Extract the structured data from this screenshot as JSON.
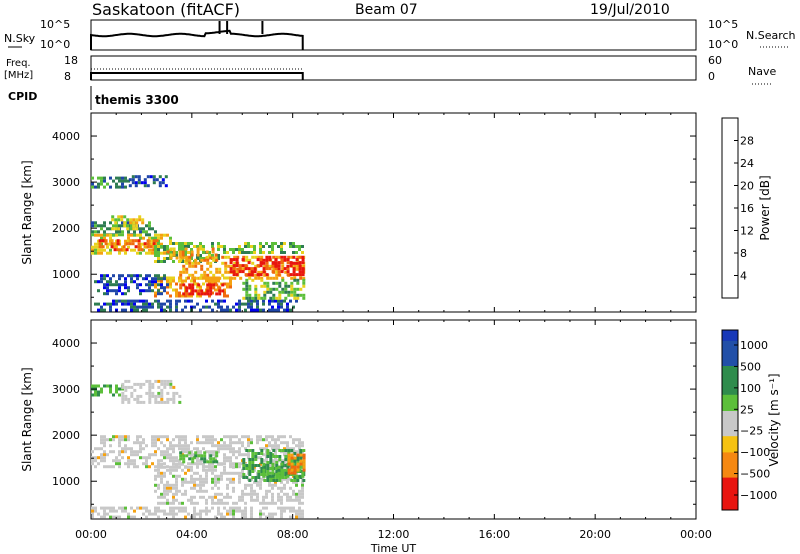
{
  "header": {
    "station": "Saskatoon (fitACF)",
    "beam": "Beam 07",
    "date": "19/Jul/2010"
  },
  "colors": {
    "scatter_power": [
      "#0000ee",
      "#1f46a8",
      "#2e7c52",
      "#5cbf3a",
      "#e8d21e",
      "#f5a211",
      "#f06a0e",
      "#e8150f"
    ],
    "scatter_velocity_pos": [
      "#1d3fa7",
      "#2f6db7",
      "#2f8c4c",
      "#5cbf3a"
    ],
    "ground_scatter": "#c8c8c8"
  },
  "chart_data": [
    {
      "type": "line",
      "panel": "noise-and-search",
      "ylabel_left": "N.Sky",
      "ylabel_right": "N.Search",
      "ytick_labels_left": [
        "10^5",
        "10^0"
      ],
      "ytick_labels_right": [
        "10^5",
        "10^0"
      ]
    },
    {
      "type": "line",
      "panel": "frequency-and-nave",
      "ylabel_left": "Freq. [MHz]",
      "ylabel_right": "Nave",
      "ytick_labels_left": [
        "18",
        "8"
      ],
      "ytick_labels_right": [
        "60",
        "0"
      ],
      "left_ylim": [
        8,
        18
      ],
      "right_ylim": [
        0,
        60
      ]
    },
    {
      "type": "table",
      "panel": "cpid",
      "label": "CPID",
      "value": "themis 3300"
    },
    {
      "type": "heatmap",
      "panel": "power",
      "xlabel": "",
      "ylabel": "Slant Range [km]",
      "xlim_hours": [
        0,
        24
      ],
      "ylim": [
        180,
        4500
      ],
      "yticks": [
        "1000",
        "2000",
        "3000",
        "4000"
      ],
      "data_end_hour": 8.4,
      "colorbar": {
        "label": "Power [dB]",
        "range": [
          0,
          32
        ],
        "ticks": [
          "4",
          "8",
          "12",
          "16",
          "20",
          "24",
          "28"
        ]
      },
      "regions": [
        {
          "t0": 0.0,
          "t1": 1.5,
          "r0": 2880,
          "r1": 3120,
          "level": 2
        },
        {
          "t0": 1.5,
          "t1": 3.0,
          "r0": 2950,
          "r1": 3150,
          "level": 1
        },
        {
          "t0": 0.0,
          "t1": 2.5,
          "r0": 1880,
          "r1": 2150,
          "level": 2
        },
        {
          "t0": 0.8,
          "t1": 2.0,
          "r0": 2000,
          "r1": 2280,
          "level": 4
        },
        {
          "t0": 0.0,
          "t1": 3.2,
          "r0": 1480,
          "r1": 1880,
          "level": 4
        },
        {
          "t0": 0.3,
          "t1": 2.6,
          "r0": 1560,
          "r1": 1760,
          "level": 6
        },
        {
          "t0": 2.5,
          "t1": 5.0,
          "r0": 1300,
          "r1": 1700,
          "level": 3
        },
        {
          "t0": 3.0,
          "t1": 5.0,
          "r0": 1380,
          "r1": 1580,
          "level": 5
        },
        {
          "t0": 5.0,
          "t1": 8.4,
          "r0": 1450,
          "r1": 1700,
          "level": 3
        },
        {
          "t0": 3.5,
          "t1": 8.4,
          "r0": 900,
          "r1": 1400,
          "level": 5
        },
        {
          "t0": 5.5,
          "t1": 8.4,
          "r0": 1000,
          "r1": 1350,
          "level": 7
        },
        {
          "t0": 6.8,
          "t1": 8.4,
          "r0": 1150,
          "r1": 1400,
          "level": 7
        },
        {
          "t0": 2.5,
          "t1": 5.5,
          "r0": 500,
          "r1": 950,
          "level": 5
        },
        {
          "t0": 3.5,
          "t1": 5.2,
          "r0": 550,
          "r1": 800,
          "level": 7
        },
        {
          "t0": 0.0,
          "t1": 3.0,
          "r0": 600,
          "r1": 1000,
          "level": 1
        },
        {
          "t0": 0.0,
          "t1": 8.4,
          "r0": 200,
          "r1": 450,
          "level": 1
        },
        {
          "t0": 6.0,
          "t1": 8.4,
          "r0": 450,
          "r1": 900,
          "level": 3
        }
      ]
    },
    {
      "type": "heatmap",
      "panel": "velocity",
      "xlabel": "Time UT",
      "ylabel": "Slant Range [km]",
      "xlim_hours": [
        0,
        24
      ],
      "ylim": [
        180,
        4500
      ],
      "yticks": [
        "1000",
        "2000",
        "3000",
        "4000"
      ],
      "xtick_labels": [
        "00:00",
        "04:00",
        "08:00",
        "12:00",
        "16:00",
        "20:00",
        "00:00"
      ],
      "data_end_hour": 8.4,
      "colorbar": {
        "label": "Velocity [m s⁻¹]",
        "ticks": [
          "1000",
          "500",
          "100",
          "25",
          "−25",
          "−100",
          "−500",
          "−1000"
        ]
      },
      "regions": [
        {
          "t0": 0.0,
          "t1": 1.2,
          "r0": 2850,
          "r1": 3100,
          "level": "v+100"
        },
        {
          "t0": 1.2,
          "t1": 3.5,
          "r0": 2700,
          "r1": 3200,
          "level": "gs"
        },
        {
          "t0": 0.0,
          "t1": 8.4,
          "r0": 1300,
          "r1": 2000,
          "level": "gs"
        },
        {
          "t0": 2.5,
          "t1": 8.4,
          "r0": 500,
          "r1": 1400,
          "level": "gs"
        },
        {
          "t0": 0.0,
          "t1": 8.4,
          "r0": 200,
          "r1": 450,
          "level": "gs"
        },
        {
          "t0": 6.0,
          "t1": 8.4,
          "r0": 1000,
          "r1": 1700,
          "level": "v+500"
        },
        {
          "t0": 6.8,
          "t1": 8.4,
          "r0": 1100,
          "r1": 1400,
          "level": "v+100"
        },
        {
          "t0": 7.8,
          "t1": 8.4,
          "r0": 1150,
          "r1": 1600,
          "level": "v-100"
        },
        {
          "t0": 3.5,
          "t1": 5.0,
          "r0": 1450,
          "r1": 1650,
          "level": "v+100"
        }
      ]
    }
  ]
}
